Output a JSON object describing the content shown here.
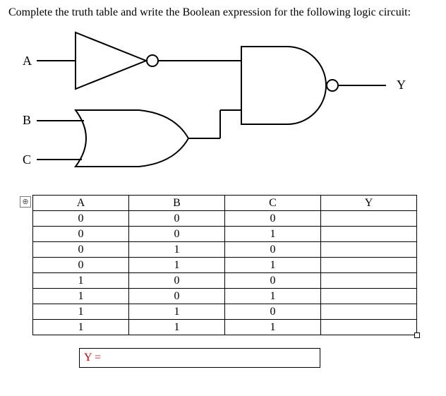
{
  "prompt": "Complete the truth table and write the Boolean expression for the following logic circuit:",
  "circuit": {
    "inputs": [
      "A",
      "B",
      "C"
    ],
    "output": "Y",
    "stroke": "#000000",
    "stroke_width": 2,
    "gates": [
      {
        "type": "NOT",
        "bubble": true
      },
      {
        "type": "OR"
      },
      {
        "type": "NAND",
        "bubble": true
      }
    ]
  },
  "truth_table": {
    "columns": [
      "A",
      "B",
      "C",
      "Y"
    ],
    "rows": [
      [
        "0",
        "0",
        "0",
        ""
      ],
      [
        "0",
        "0",
        "1",
        ""
      ],
      [
        "0",
        "1",
        "0",
        ""
      ],
      [
        "0",
        "1",
        "1",
        ""
      ],
      [
        "1",
        "0",
        "0",
        ""
      ],
      [
        "1",
        "0",
        "1",
        ""
      ],
      [
        "1",
        "1",
        "0",
        ""
      ],
      [
        "1",
        "1",
        "1",
        ""
      ]
    ],
    "border_color": "#000000",
    "anchor_glyph": "⊕"
  },
  "answer": {
    "label": "Y =",
    "value": "",
    "label_color": "#d10000"
  }
}
